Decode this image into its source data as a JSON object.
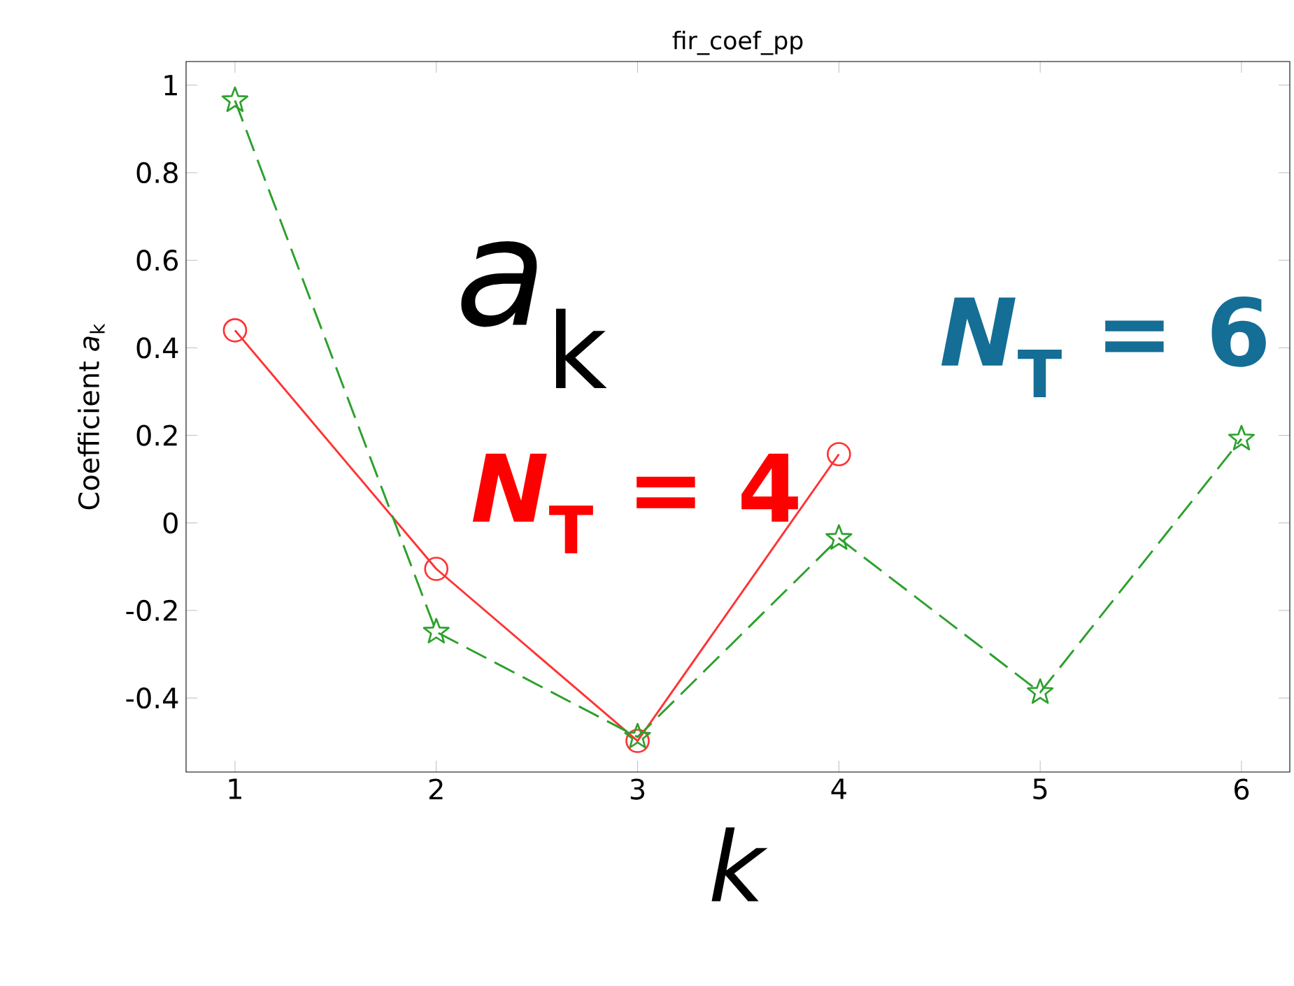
{
  "chart_data": {
    "type": "line",
    "title": "fir_coef_pp",
    "xlabel": "*k*",
    "ylabel": "Coefficient *a*$_{k}$",
    "series": [
      {
        "color": "#ff3333",
        "marker": "circle",
        "line_style": "solid",
        "x": [
          1,
          2,
          3,
          4
        ],
        "values": [
          0.44,
          -0.105,
          -0.498,
          0.157
        ]
      },
      {
        "color": "#2ca02c",
        "marker": "star",
        "line_style": "dashed",
        "x": [
          1,
          2,
          3,
          4,
          5,
          6
        ],
        "values": [
          0.965,
          -0.249,
          -0.489,
          -0.035,
          -0.387,
          0.192
        ]
      }
    ],
    "xlim": [
      0.757,
      6.24
    ],
    "ylim": [
      -0.569,
      1.054
    ],
    "xticks": [
      1,
      2,
      3,
      4,
      5,
      6
    ],
    "yticks": [
      -0.4,
      -0.2,
      0,
      0.2,
      0.4,
      0.6,
      0.8,
      1
    ],
    "annotations": [
      "*a*$_{k}$",
      "*N*$_{T}$ = 4",
      "*N*$_{T}$ = 6"
    ],
    "grid": false,
    "legend": false
  }
}
